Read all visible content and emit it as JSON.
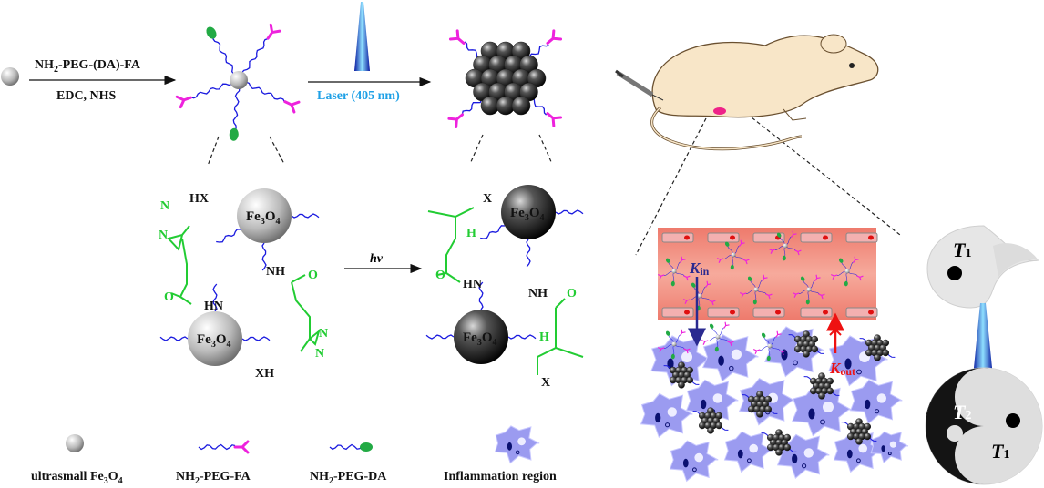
{
  "step1": {
    "reagent_main": "NH",
    "reagent_sub": "2",
    "reagent_rest": "-PEG-(DA)-FA",
    "conditions": "EDC, NHS"
  },
  "step2": {
    "laser_label": "Laser (405 nm)",
    "laser_color": "#1ea0e6"
  },
  "reaction": {
    "hv_label": "hv"
  },
  "particles": {
    "fe_main": "Fe",
    "fe_sub1": "3",
    "fe_o": "O",
    "fe_sub2": "4"
  },
  "chemistry_left": {
    "hx": "HX",
    "nh": "NH",
    "hn": "HN",
    "xh": "XH",
    "n": "N",
    "o": "O"
  },
  "chemistry_right": {
    "x": "X",
    "h": "H",
    "hn": "HN",
    "nh": "NH",
    "o": "O"
  },
  "vessel": {
    "k_in_main": "K",
    "k_in_sub": "in",
    "k_out_main": "K",
    "k_out_sub": "out"
  },
  "yinyang": {
    "t_main": "T",
    "t1_sub": "1",
    "t2_sub": "2"
  },
  "legend": {
    "item1_main": "ultrasmall Fe",
    "item1_sub1": "3",
    "item1_o": "O",
    "item1_sub2": "4",
    "item2_main": "NH",
    "item2_sub": "2",
    "item2_rest": "-PEG-FA",
    "item3_main": "NH",
    "item3_sub": "2",
    "item3_rest": "-PEG-DA",
    "item4": "Inflammation region"
  },
  "colors": {
    "peg": "#1a1adf",
    "fa": "#ee22dd",
    "da": "#22aa44",
    "vessel": "#f08878",
    "cell": "#9b9bf0",
    "kin": "#2a2a90",
    "kout": "#ee1111"
  }
}
